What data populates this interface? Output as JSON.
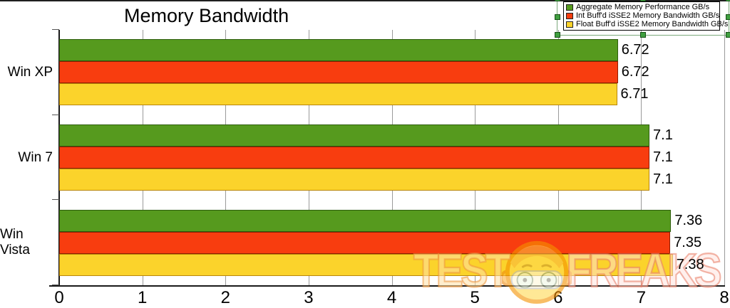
{
  "chart_data": {
    "type": "bar",
    "orientation": "horizontal",
    "title": "Memory Bandwidth",
    "categories": [
      "Win XP",
      "Win 7",
      "Win Vista"
    ],
    "series": [
      {
        "name": "Aggregate Memory Performance GB/s",
        "color": "#569A1E",
        "border_color": "#2E5E0E",
        "values": [
          6.72,
          7.1,
          7.36
        ],
        "labels": [
          "6.72",
          "7.1",
          "7.36"
        ]
      },
      {
        "name": "Int Buff'd iSSE2 Memory Bandwidth GB/s",
        "color": "#F83D0F",
        "border_color": "#8F1E00",
        "values": [
          6.72,
          7.1,
          7.35
        ],
        "labels": [
          "6.72",
          "7.1",
          "7.35"
        ]
      },
      {
        "name": "Float Buff'd iSSE2 Memory Bandwidth GB/s",
        "color": "#FBD32B",
        "border_color": "#B8860B",
        "values": [
          6.71,
          7.1,
          7.38
        ],
        "labels": [
          "6.71",
          "7.1",
          "7.38"
        ]
      }
    ],
    "xlim": [
      0,
      8
    ],
    "x_ticks": [
      "0",
      "1",
      "2",
      "3",
      "4",
      "5",
      "6",
      "7",
      "8"
    ],
    "grid": true,
    "gridline_color": "#9a9a9a",
    "legend_position": "top-right",
    "legend_selected": true,
    "selection_handle_color": "#3f9f3f"
  },
  "watermark": {
    "left_text": "TEST",
    "right_text": "FREAKS",
    "mascot": "goggles-face-icon"
  }
}
